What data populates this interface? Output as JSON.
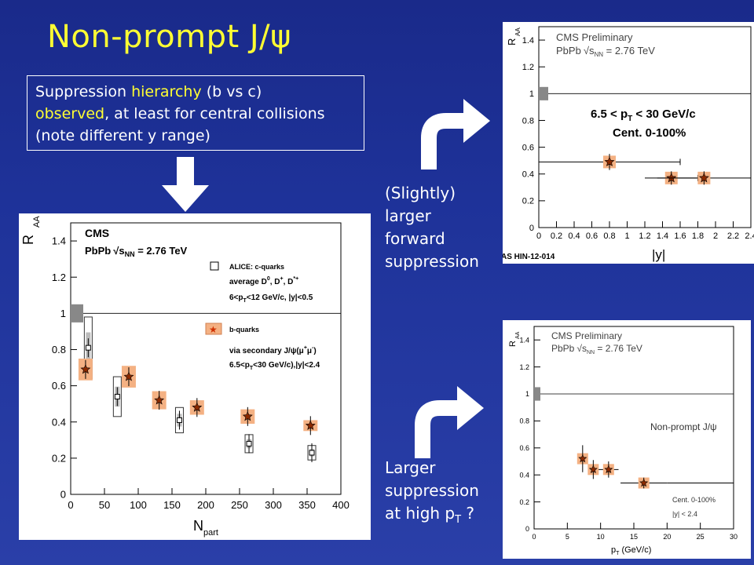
{
  "slide": {
    "title": "Non-prompt J/ψ",
    "callout": {
      "p1": "Suppression ",
      "h1": "hierarchy",
      "p2": " (b vs c)",
      "h2": "observed",
      "p3": ", at least for central collisions (note different y range)"
    },
    "note_top": [
      "(Slightly)",
      "larger",
      "forward",
      "suppression"
    ],
    "note_bottom": [
      "Larger",
      "suppression",
      "at high p"
    ],
    "note_bottom_sub": "T",
    "note_bottom_tail": " ?"
  },
  "colors": {
    "title": "#ffff33",
    "c_box": "#555555",
    "b_box": "#f4b183",
    "arrow": "#ffffff"
  },
  "chart_data": [
    {
      "type": "scatter",
      "ylabel": "R",
      "ylabel_sub": "AA",
      "xlabel": "N",
      "xlabel_sub": "part",
      "xlim": [
        0,
        400
      ],
      "ylim": [
        0,
        1.5
      ],
      "xticks": [
        "0",
        "50",
        "100",
        "150",
        "200",
        "250",
        "300",
        "350",
        "400"
      ],
      "yticks": [
        "0",
        "0.2",
        "0.4",
        "0.6",
        "0.8",
        "1",
        "1.2",
        "1.4"
      ],
      "annotations": {
        "experiment": "CMS",
        "system": "PbPb",
        "sqrt": "s",
        "sqrt_sub": "NN",
        "energy": " = 2.76 TeV",
        "legend_c": "ALICE: c-quarks",
        "legend_c2": "average D",
        "legend_c2b": "0",
        "legend_c2c": ", D",
        "legend_c2d": "+",
        "legend_c2e": ", D",
        "legend_c2f": "*+",
        "legend_c3": "6<p",
        "legend_c3b": "T",
        "legend_c3c": "<12 GeV/c, |y|<0.5",
        "legend_b": "b-quarks",
        "legend_b2": "via secondary J/ψ(μ",
        "legend_b2b": "+",
        "legend_b2c": "μ",
        "legend_b2d": "-",
        "legend_b2e": ")",
        "legend_b3": "6.5<p",
        "legend_b3b": "T",
        "legend_b3c": "<30 GeV/c),|y|<2.4"
      },
      "reference_line": 1,
      "series": [
        {
          "name": "ALICE: c-quarks",
          "x": [
            26,
            69,
            161,
            264,
            357
          ],
          "y": [
            0.81,
            0.54,
            0.41,
            0.28,
            0.23
          ],
          "sys": [
            0.17,
            0.11,
            0.07,
            0.05,
            0.04
          ]
        },
        {
          "name": "b-quarks",
          "x": [
            22,
            86,
            131,
            187,
            262,
            355
          ],
          "y": [
            0.69,
            0.65,
            0.52,
            0.48,
            0.43,
            0.38
          ],
          "sys": [
            0.06,
            0.06,
            0.05,
            0.04,
            0.04,
            0.03
          ]
        }
      ],
      "global_unc": 0.05
    },
    {
      "type": "scatter",
      "ylabel": "R",
      "ylabel_sub": "AA",
      "xlabel": "|y|",
      "xlim": [
        0,
        2.4
      ],
      "ylim": [
        0,
        1.5
      ],
      "xticks": [
        "0",
        "0.2",
        "0.4",
        "0.6",
        "0.8",
        "1",
        "1.2",
        "1.4",
        "1.6",
        "1.8",
        "2",
        "2.2",
        "2.4"
      ],
      "yticks": [
        "0",
        "0.2",
        "0.4",
        "0.6",
        "0.8",
        "1",
        "1.2",
        "1.4"
      ],
      "annotations": {
        "line1": "CMS Preliminary",
        "line2a": "PbPb",
        "sqrt": "s",
        "sqrt_sub": "NN",
        "line2b": " = 2.76 TeV",
        "cut1": "6.5 < p",
        "cut1b": "T",
        "cut1c": " < 30 GeV/c",
        "cut2": "Cent. 0-100%",
        "corner": "AS HIN-12-014"
      },
      "reference_line": 1,
      "series": [
        {
          "name": "b-quarks",
          "x": [
            0.8,
            1.5,
            1.87
          ],
          "y": [
            0.49,
            0.37,
            0.37
          ],
          "xerr": [
            0.8,
            0.3,
            0.53
          ],
          "yerr": [
            0.06,
            0.05,
            0.05
          ]
        }
      ],
      "global_unc": 0.05
    },
    {
      "type": "scatter",
      "ylabel": "R",
      "ylabel_sub": "AA",
      "xlabel": "p",
      "xlabel_sub": "T",
      "xlabel_tail": " (GeV/c)",
      "xlim": [
        0,
        30
      ],
      "ylim": [
        0,
        1.5
      ],
      "xticks": [
        "0",
        "5",
        "10",
        "15",
        "20",
        "25",
        "30"
      ],
      "yticks": [
        "0",
        "0.2",
        "0.4",
        "0.6",
        "0.8",
        "1",
        "1.2",
        "1.4"
      ],
      "annotations": {
        "line1": "CMS Preliminary",
        "line2a": "PbPb",
        "sqrt": "s",
        "sqrt_sub": "NN",
        "line2b": " = 2.76 TeV",
        "label": "Non-prompt J/ψ",
        "cut1": "Cent. 0-100%",
        "cut2": "|y| < 2.4"
      },
      "reference_line": 1,
      "series": [
        {
          "name": "b-quarks",
          "x": [
            7.3,
            8.9,
            11.2,
            16.5
          ],
          "y": [
            0.52,
            0.44,
            0.44,
            0.34
          ],
          "xerr": [
            0.8,
            0.8,
            1.5,
            3.5
          ],
          "yerr": [
            0.1,
            0.07,
            0.06,
            0.04
          ]
        }
      ],
      "global_unc": 0.05
    }
  ]
}
